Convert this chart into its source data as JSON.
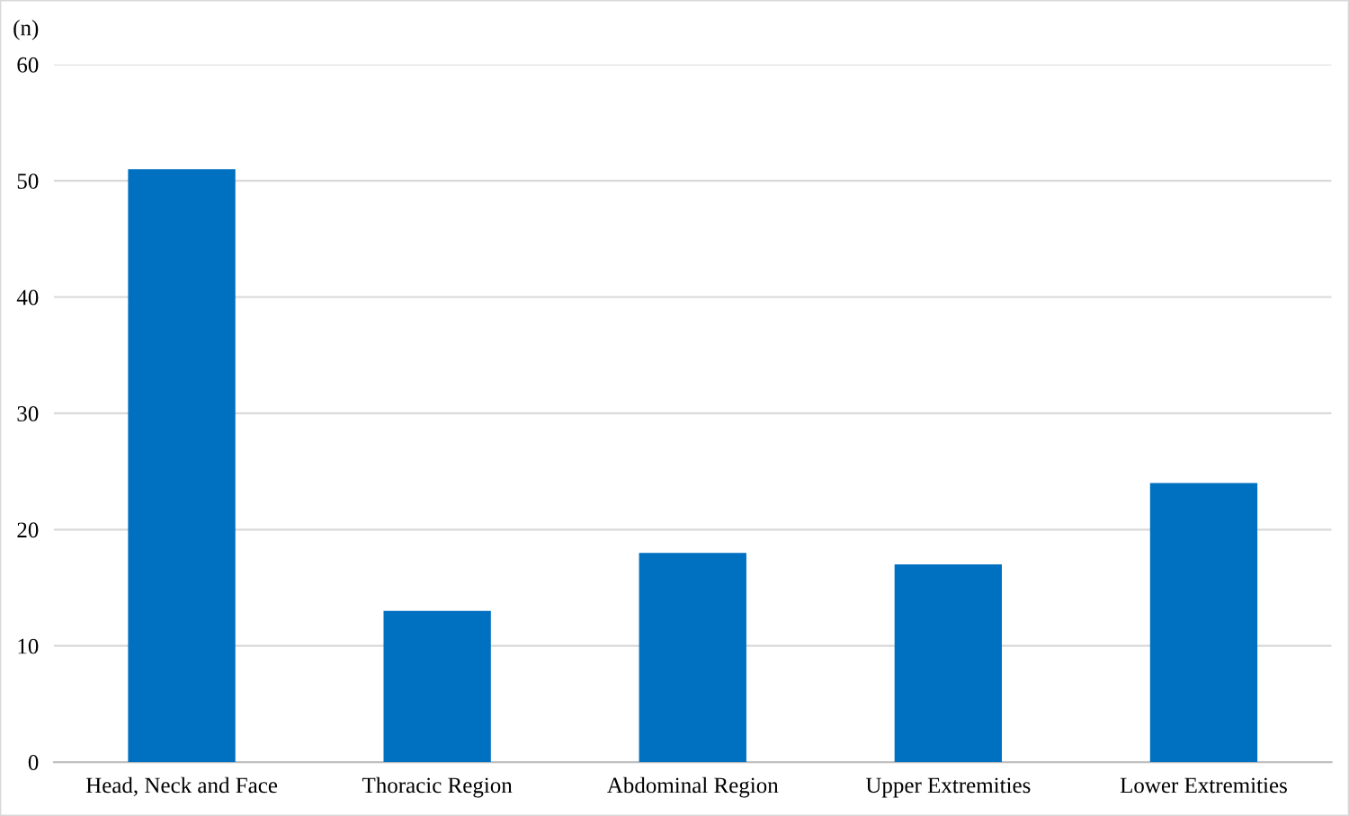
{
  "chart_data": {
    "type": "bar",
    "ylabel": "(n)",
    "categories": [
      "Head, Neck and Face",
      "Thoracic Region",
      "Abdominal Region",
      "Upper Extremities",
      "Lower Extremities"
    ],
    "values": [
      51,
      13,
      18,
      17,
      24
    ],
    "color": "#0070c0",
    "ylim": [
      0,
      60
    ],
    "yticks": [
      0,
      10,
      20,
      30,
      40,
      50,
      60
    ],
    "grid": "y",
    "legend": false
  }
}
